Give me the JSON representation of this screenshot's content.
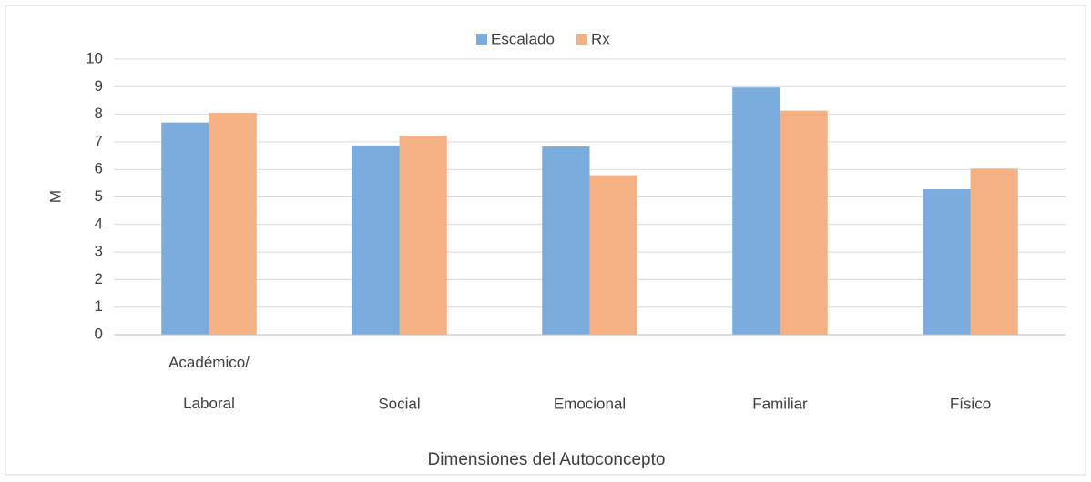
{
  "chart_data": {
    "type": "bar",
    "categories": [
      "Académico/ Laboral",
      "Social",
      "Emocional",
      "Familiar",
      "Físico"
    ],
    "series": [
      {
        "name": "Escalado",
        "color": "#7aaddd",
        "values": [
          7.7,
          6.87,
          6.83,
          8.97,
          5.28
        ]
      },
      {
        "name": "Rx",
        "color": "#f4b183",
        "values": [
          8.05,
          7.23,
          5.79,
          8.13,
          6.03
        ]
      }
    ],
    "y_label": "M",
    "x_label": "Dimensiones del Autoconcepto",
    "ylim": [
      0,
      10
    ],
    "yticks": [
      0,
      1,
      2,
      3,
      4,
      5,
      6,
      7,
      8,
      9,
      10
    ],
    "grid": true,
    "legend": "top"
  }
}
